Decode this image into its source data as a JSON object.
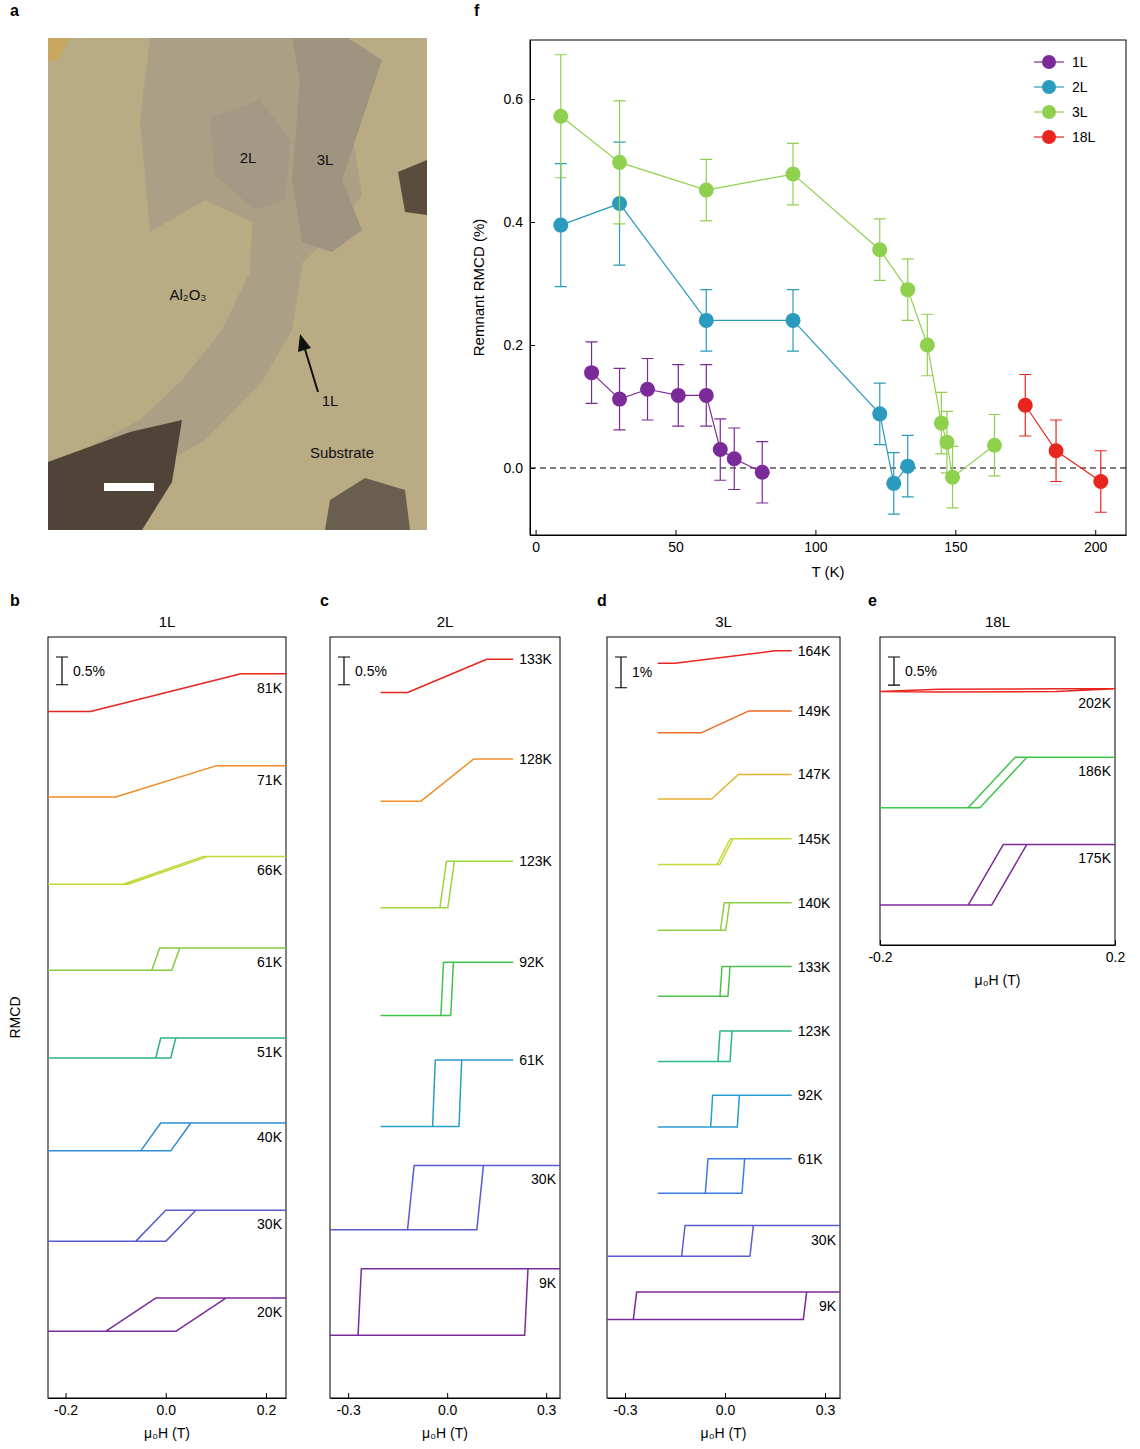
{
  "chart_data": [
    {
      "type": "image",
      "panel": "a",
      "annotations": [
        "2L",
        "3L",
        "Al₂O₃",
        "1L",
        "Substrate"
      ]
    },
    {
      "type": "line",
      "panel": "b",
      "title": "1L",
      "x_label": "μ₀H (T)",
      "y_label": "RMCD",
      "xlim": [
        -0.235,
        0.24
      ],
      "xticks": [
        -0.2,
        {
          "value": 0,
          "label": "0.0"
        },
        0.2
      ],
      "ylim": [
        -1.5,
        12.2
      ],
      "tick_labels": "x",
      "scale_bar": {
        "value": 0.5,
        "label": "0.5%"
      },
      "series": [
        {
          "name": "81K",
          "color": "#e8251f",
          "offset": 11.2,
          "x": [
            0.25,
            0.15,
            -0.15,
            -0.25,
            -0.15,
            0.15,
            0.25
          ],
          "values": [
            0.34,
            0.34,
            -0.34,
            -0.34,
            -0.34,
            0.34,
            0.34
          ]
        },
        {
          "name": "71K",
          "color": "#f08a24",
          "offset": 9.6,
          "x": [
            0.25,
            0.1,
            -0.1,
            -0.25,
            -0.1,
            0.1,
            0.25
          ],
          "values": [
            0.28,
            0.28,
            -0.28,
            -0.28,
            -0.28,
            0.28,
            0.28
          ]
        },
        {
          "name": "66K",
          "color": "#c5d63a",
          "offset": 8.0,
          "x": [
            0.25,
            0.075,
            -0.085,
            -0.25,
            -0.075,
            0.085,
            0.25
          ],
          "values": [
            0.25,
            0.25,
            -0.25,
            -0.25,
            -0.25,
            0.25,
            0.25
          ]
        },
        {
          "name": "61K",
          "color": "#84cc3f",
          "offset": 6.4,
          "x": [
            0.25,
            -0.012,
            -0.028,
            -0.25,
            0.012,
            0.028,
            0.25
          ],
          "values": [
            0.2,
            0.2,
            -0.2,
            -0.2,
            -0.2,
            0.2,
            0.2
          ]
        },
        {
          "name": "51K",
          "color": "#2fb08a",
          "offset": 4.8,
          "x": [
            0.25,
            -0.01,
            -0.02,
            -0.25,
            0.01,
            0.02,
            0.25
          ],
          "values": [
            0.18,
            0.18,
            -0.18,
            -0.18,
            -0.18,
            0.18,
            0.18
          ]
        },
        {
          "name": "40K",
          "color": "#2e8fcf",
          "offset": 3.2,
          "x": [
            0.25,
            -0.01,
            -0.05,
            -0.25,
            0.01,
            0.05,
            0.25
          ],
          "values": [
            0.25,
            0.25,
            -0.25,
            -0.25,
            -0.25,
            0.25,
            0.25
          ]
        },
        {
          "name": "30K",
          "color": "#5a5bd0",
          "offset": 1.6,
          "x": [
            0.25,
            0,
            -0.06,
            -0.25,
            0,
            0.06,
            0.25
          ],
          "values": [
            0.28,
            0.28,
            -0.28,
            -0.28,
            -0.28,
            0.28,
            0.28
          ]
        },
        {
          "name": "20K",
          "color": "#7b2a9a",
          "offset": 0,
          "x": [
            0.25,
            -0.02,
            -0.12,
            -0.25,
            0.02,
            0.12,
            0.25
          ],
          "values": [
            0.3,
            0.3,
            -0.3,
            -0.3,
            -0.3,
            0.3,
            0.3
          ]
        }
      ]
    },
    {
      "type": "line",
      "panel": "c",
      "title": "2L",
      "x_label": "μ₀H (T)",
      "xlim": [
        -0.355,
        0.342
      ],
      "xticks": [
        -0.3,
        {
          "value": 0,
          "label": "0.0"
        },
        0.3
      ],
      "ylim": [
        -1.73,
        11.98
      ],
      "tick_labels": "x",
      "scale_bar": {
        "value": 0.5,
        "label": "0.5%"
      },
      "series": [
        {
          "name": "133K",
          "color": "#e8251f",
          "offset": 11.28,
          "x": [
            0.2,
            0.12,
            -0.12,
            -0.2,
            -0.12,
            0.12,
            0.2
          ],
          "values": [
            0.3,
            0.3,
            -0.3,
            -0.3,
            -0.3,
            0.3,
            0.3
          ]
        },
        {
          "name": "128K",
          "color": "#f0902a",
          "offset": 9.4,
          "x": [
            0.2,
            0.08,
            -0.08,
            -0.2,
            -0.08,
            0.08,
            0.2
          ],
          "values": [
            0.38,
            0.38,
            -0.38,
            -0.38,
            -0.38,
            0.38,
            0.38
          ]
        },
        {
          "name": "123K",
          "color": "#9ed43d",
          "offset": 7.52,
          "x": [
            0.2,
            -0.002,
            -0.022,
            -0.2,
            0.002,
            0.022,
            0.2
          ],
          "values": [
            0.42,
            0.42,
            -0.42,
            -0.42,
            -0.42,
            0.42,
            0.42
          ]
        },
        {
          "name": "92K",
          "color": "#3ec44a",
          "offset": 5.64,
          "x": [
            0.2,
            -0.011,
            -0.019,
            -0.2,
            0.011,
            0.019,
            0.2
          ],
          "values": [
            0.48,
            0.48,
            -0.48,
            -0.48,
            -0.48,
            0.48,
            0.48
          ]
        },
        {
          "name": "61K",
          "color": "#2a9cc9",
          "offset": 3.76,
          "x": [
            0.2,
            -0.036,
            -0.044,
            -0.2,
            0.036,
            0.044,
            0.2
          ],
          "values": [
            0.6,
            0.6,
            -0.6,
            -0.6,
            -0.6,
            0.6,
            0.6
          ]
        },
        {
          "name": "30K",
          "color": "#5a5bd0",
          "offset": 1.88,
          "x": [
            0.4,
            -0.1,
            -0.12,
            -0.4,
            0.09,
            0.11,
            0.4
          ],
          "values": [
            0.58,
            0.58,
            -0.58,
            -0.58,
            -0.58,
            0.58,
            0.58
          ]
        },
        {
          "name": "9K",
          "color": "#7b2a9a",
          "offset": 0,
          "x": [
            0.4,
            -0.26,
            -0.27,
            -0.4,
            0.235,
            0.245,
            0.4
          ],
          "values": [
            0.6,
            0.6,
            -0.6,
            -0.6,
            -0.6,
            0.6,
            0.6
          ]
        }
      ]
    },
    {
      "type": "line",
      "panel": "d",
      "title": "3L",
      "x_label": "μ₀H (T)",
      "xlim": [
        -0.354,
        0.345
      ],
      "xticks": [
        -0.3,
        {
          "value": 0,
          "label": "0.0"
        },
        0.3
      ],
      "ylim": [
        -3.0,
        21.75
      ],
      "tick_labels": "x",
      "scale_bar": {
        "value": 1,
        "label": "1%"
      },
      "series": [
        {
          "name": "164K",
          "color": "#e8251f",
          "offset": 21.1,
          "x": [
            0.2,
            0.15,
            -0.15,
            -0.2,
            -0.15,
            0.15,
            0.2
          ],
          "values": [
            0.2,
            0.2,
            -0.2,
            -0.2,
            -0.2,
            0.2,
            0.2
          ]
        },
        {
          "name": "149K",
          "color": "#f06a24",
          "offset": 18.99,
          "x": [
            0.2,
            0.07,
            -0.07,
            -0.2,
            -0.07,
            0.07,
            0.2
          ],
          "values": [
            0.35,
            0.35,
            -0.35,
            -0.35,
            -0.35,
            0.35,
            0.35
          ]
        },
        {
          "name": "147K",
          "color": "#e8b030",
          "offset": 16.88,
          "x": [
            0.2,
            0.04,
            -0.04,
            -0.2,
            -0.04,
            0.04,
            0.2
          ],
          "values": [
            0.4,
            0.4,
            -0.4,
            -0.4,
            -0.4,
            0.4,
            0.4
          ]
        },
        {
          "name": "145K",
          "color": "#c8d83a",
          "offset": 14.77,
          "x": [
            0.2,
            0.016,
            -0.024,
            -0.2,
            -0.016,
            0.024,
            0.2
          ],
          "values": [
            0.42,
            0.42,
            -0.42,
            -0.42,
            -0.42,
            0.42,
            0.42
          ]
        },
        {
          "name": "140K",
          "color": "#8ed040",
          "offset": 12.66,
          "x": [
            0.2,
            -0.002,
            -0.014,
            -0.2,
            0.002,
            0.014,
            0.2
          ],
          "values": [
            0.45,
            0.45,
            -0.45,
            -0.45,
            -0.45,
            0.45,
            0.45
          ]
        },
        {
          "name": "133K",
          "color": "#4cc04a",
          "offset": 10.55,
          "x": [
            0.2,
            -0.009,
            -0.015,
            -0.2,
            0.009,
            0.015,
            0.2
          ],
          "values": [
            0.48,
            0.48,
            -0.48,
            -0.48,
            -0.48,
            0.48,
            0.48
          ]
        },
        {
          "name": "123K",
          "color": "#2ab88a",
          "offset": 8.44,
          "x": [
            0.2,
            -0.015,
            -0.021,
            -0.2,
            0.015,
            0.021,
            0.2
          ],
          "values": [
            0.5,
            0.5,
            -0.5,
            -0.5,
            -0.5,
            0.5,
            0.5
          ]
        },
        {
          "name": "92K",
          "color": "#2a9cd0",
          "offset": 6.33,
          "x": [
            0.2,
            -0.037,
            -0.043,
            -0.2,
            0.037,
            0.043,
            0.2
          ],
          "values": [
            0.52,
            0.52,
            -0.52,
            -0.52,
            -0.52,
            0.52,
            0.52
          ]
        },
        {
          "name": "61K",
          "color": "#3a7ae0",
          "offset": 4.22,
          "x": [
            0.2,
            -0.051,
            -0.059,
            -0.2,
            0.051,
            0.059,
            0.2
          ],
          "values": [
            0.56,
            0.56,
            -0.56,
            -0.56,
            -0.56,
            0.56,
            0.56
          ]
        },
        {
          "name": "30K",
          "color": "#5a5bd0",
          "offset": 2.11,
          "x": [
            0.4,
            -0.12,
            -0.13,
            -0.4,
            0.075,
            0.085,
            0.4
          ],
          "values": [
            0.5,
            0.5,
            -0.5,
            -0.5,
            -0.5,
            0.5,
            0.5
          ]
        },
        {
          "name": "9K",
          "color": "#7b2a9a",
          "offset": 0,
          "x": [
            0.4,
            -0.265,
            -0.275,
            -0.4,
            0.235,
            0.245,
            0.4
          ],
          "values": [
            0.45,
            0.45,
            -0.45,
            -0.45,
            -0.45,
            0.45,
            0.45
          ]
        }
      ]
    },
    {
      "type": "line",
      "panel": "e",
      "title": "18L",
      "x_label": "μ₀H (T)",
      "xlim": [
        -0.2,
        0.2
      ],
      "xticks": [
        -0.2,
        0.2
      ],
      "ylim": [
        -1.25,
        4.23
      ],
      "tick_labels": "x",
      "scale_bar": {
        "value": 0.5,
        "label": "0.5%"
      },
      "series": [
        {
          "name": "202K",
          "color": "#e8251f",
          "offset": 3.28,
          "x": [
            0.2,
            0.1,
            -0.1,
            -0.2,
            -0.1,
            0.1,
            0.2
          ],
          "values": [
            0.03,
            0.03,
            0.02,
            -0.02,
            -0.03,
            -0.02,
            0.03
          ]
        },
        {
          "name": "186K",
          "color": "#3ec44a",
          "offset": 1.64,
          "x": [
            0.2,
            0.03,
            -0.05,
            -0.2,
            -0.03,
            0.05,
            0.2
          ],
          "values": [
            0.45,
            0.45,
            -0.45,
            -0.45,
            -0.45,
            0.45,
            0.45
          ]
        },
        {
          "name": "175K",
          "color": "#7b2a9a",
          "offset": 0,
          "x": [
            0.2,
            0.01,
            -0.05,
            -0.2,
            -0.01,
            0.05,
            0.2
          ],
          "values": [
            0.54,
            0.54,
            -0.54,
            -0.54,
            -0.54,
            0.54,
            0.54
          ]
        }
      ]
    },
    {
      "type": "line",
      "panel": "f",
      "x_label": "T (K)",
      "y_label": "Remnant RMCD (%)",
      "xlim": [
        -2,
        211
      ],
      "xticks": [
        0,
        50,
        100,
        150,
        200
      ],
      "ylim": [
        -0.109,
        0.696
      ],
      "yticks": [
        {
          "value": 0,
          "label": "0.0"
        },
        0.2,
        0.4,
        0.6
      ],
      "legend": "top-right",
      "marker": "circle",
      "line_style": "solid",
      "reference_line": {
        "y": 0,
        "line_style": "dashed"
      },
      "series": [
        {
          "name": "1L",
          "color": "#7b2a9a",
          "x": [
            20,
            30,
            40,
            51,
            61,
            66,
            71,
            81
          ],
          "values": [
            0.155,
            0.112,
            0.128,
            0.118,
            0.118,
            0.03,
            0.015,
            -0.007
          ],
          "errors": [
            0.05,
            0.05,
            0.05,
            0.05,
            0.05,
            0.05,
            0.05,
            0.05
          ]
        },
        {
          "name": "2L",
          "color": "#2a9bbd",
          "x": [
            9,
            30,
            61,
            92,
            123,
            128,
            133
          ],
          "values": [
            0.395,
            0.43,
            0.24,
            0.24,
            0.088,
            -0.025,
            0.003
          ],
          "errors": [
            0.1,
            0.1,
            0.05,
            0.05,
            0.05,
            0.05,
            0.05
          ]
        },
        {
          "name": "3L",
          "color": "#8fd14f",
          "x": [
            9,
            30,
            61,
            92,
            123,
            133,
            140,
            145,
            147,
            149,
            164
          ],
          "values": [
            0.572,
            0.497,
            0.452,
            0.478,
            0.355,
            0.29,
            0.2,
            0.073,
            0.042,
            -0.015,
            0.037
          ],
          "errors": [
            0.1,
            0.1,
            0.05,
            0.05,
            0.05,
            0.05,
            0.05,
            0.05,
            0.05,
            0.05,
            0.05
          ]
        },
        {
          "name": "18L",
          "color": "#e8251f",
          "x": [
            175,
            186,
            202
          ],
          "values": [
            0.102,
            0.028,
            -0.022
          ],
          "errors": [
            0.05,
            0.05,
            0.05
          ]
        }
      ]
    }
  ]
}
